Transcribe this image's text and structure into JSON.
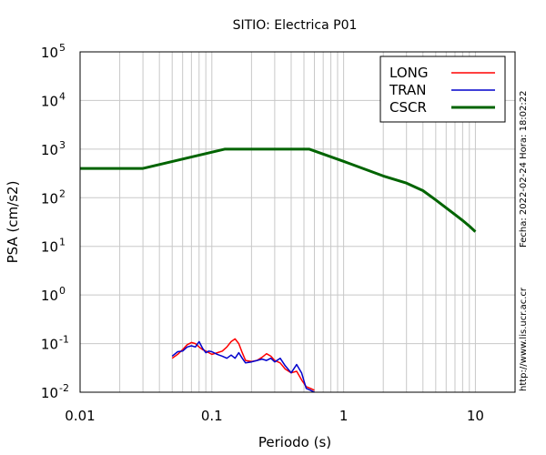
{
  "chart_data": {
    "type": "line",
    "title": "SITIO: Electrica P01",
    "xlabel": "Periodo (s)",
    "ylabel": "PSA (cm/s2)",
    "x_scale": "log",
    "y_scale": "log",
    "xlim": [
      0.01,
      20
    ],
    "ylim": [
      0.01,
      100000
    ],
    "x_ticks": [
      {
        "value": 0.01,
        "label": "0.01"
      },
      {
        "value": 0.1,
        "label": "0.1"
      },
      {
        "value": 1,
        "label": "1"
      },
      {
        "value": 10,
        "label": "10"
      }
    ],
    "y_ticks": [
      {
        "value": 0.01,
        "base": "10",
        "exp": "-2"
      },
      {
        "value": 0.1,
        "base": "10",
        "exp": "-1"
      },
      {
        "value": 1,
        "base": "10",
        "exp": "0"
      },
      {
        "value": 10,
        "base": "10",
        "exp": "1"
      },
      {
        "value": 100,
        "base": "10",
        "exp": "2"
      },
      {
        "value": 1000,
        "base": "10",
        "exp": "3"
      },
      {
        "value": 10000,
        "base": "10",
        "exp": "4"
      },
      {
        "value": 100000,
        "base": "10",
        "exp": "5"
      }
    ],
    "grid": true,
    "legend_position": "top-right",
    "series": [
      {
        "name": "LONG",
        "color": "#ff0000",
        "x": [
          0.05,
          0.055,
          0.06,
          0.065,
          0.07,
          0.075,
          0.08,
          0.085,
          0.09,
          0.095,
          0.1,
          0.11,
          0.12,
          0.13,
          0.14,
          0.15,
          0.16,
          0.17,
          0.18,
          0.2,
          0.22,
          0.24,
          0.26,
          0.28,
          0.3,
          0.33,
          0.36,
          0.4,
          0.44,
          0.48,
          0.52,
          0.56,
          0.6
        ],
        "y": [
          0.05,
          0.06,
          0.075,
          0.095,
          0.105,
          0.1,
          0.085,
          0.075,
          0.07,
          0.065,
          0.06,
          0.065,
          0.07,
          0.085,
          0.11,
          0.125,
          0.1,
          0.065,
          0.045,
          0.043,
          0.045,
          0.052,
          0.062,
          0.055,
          0.045,
          0.04,
          0.03,
          0.025,
          0.027,
          0.018,
          0.013,
          0.012,
          0.011
        ]
      },
      {
        "name": "TRAN",
        "color": "#0000cc",
        "x": [
          0.05,
          0.055,
          0.06,
          0.065,
          0.07,
          0.075,
          0.08,
          0.085,
          0.09,
          0.095,
          0.1,
          0.11,
          0.12,
          0.13,
          0.14,
          0.15,
          0.16,
          0.17,
          0.18,
          0.2,
          0.22,
          0.24,
          0.26,
          0.28,
          0.3,
          0.33,
          0.36,
          0.4,
          0.44,
          0.48,
          0.52,
          0.56,
          0.6
        ],
        "y": [
          0.055,
          0.068,
          0.07,
          0.085,
          0.09,
          0.085,
          0.11,
          0.08,
          0.065,
          0.07,
          0.068,
          0.06,
          0.055,
          0.05,
          0.058,
          0.05,
          0.065,
          0.05,
          0.04,
          0.042,
          0.045,
          0.048,
          0.045,
          0.05,
          0.042,
          0.05,
          0.035,
          0.025,
          0.037,
          0.025,
          0.012,
          0.011,
          0.01
        ]
      },
      {
        "name": "CSCR",
        "color": "#006400",
        "x": [
          0.01,
          0.03,
          0.125,
          0.55,
          1,
          2,
          3,
          4,
          5,
          6,
          7,
          8,
          9,
          10
        ],
        "y": [
          400,
          400,
          1000,
          1000,
          560,
          280,
          200,
          140,
          90,
          62,
          45,
          34,
          26,
          20
        ]
      }
    ]
  },
  "side_text": {
    "date": "Fecha: 2022-02-24 Hora: 18:02:22",
    "url": "http://www.lis.ucr.ac.cr"
  }
}
